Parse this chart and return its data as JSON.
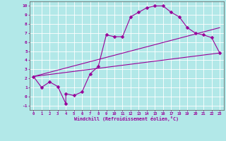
{
  "xlabel": "Windchill (Refroidissement éolien,°C)",
  "xlim": [
    -0.5,
    23.5
  ],
  "ylim": [
    -1.5,
    10.5
  ],
  "xticks": [
    0,
    1,
    2,
    3,
    4,
    5,
    6,
    7,
    8,
    9,
    10,
    11,
    12,
    13,
    14,
    15,
    16,
    17,
    18,
    19,
    20,
    21,
    22,
    23
  ],
  "yticks": [
    -1,
    0,
    1,
    2,
    3,
    4,
    5,
    6,
    7,
    8,
    9,
    10
  ],
  "bg_color": "#b2e8e8",
  "line_color": "#990099",
  "grid_color": "#ffffff",
  "line1_x": [
    0,
    1,
    2,
    3,
    4,
    4,
    5,
    6,
    7,
    8,
    9,
    10,
    11,
    12,
    13,
    14,
    15,
    16,
    17,
    18,
    19,
    20,
    21,
    22,
    23
  ],
  "line1_y": [
    2.2,
    1.0,
    1.6,
    1.1,
    -0.8,
    0.3,
    0.1,
    0.5,
    2.5,
    3.3,
    6.8,
    6.6,
    6.6,
    8.8,
    9.3,
    9.8,
    10.0,
    10.0,
    9.3,
    8.8,
    7.6,
    7.0,
    6.8,
    6.5,
    4.8
  ],
  "line2_x": [
    0,
    23
  ],
  "line2_y": [
    2.2,
    4.8
  ],
  "line3_x": [
    0,
    23
  ],
  "line3_y": [
    2.2,
    7.6
  ],
  "markersize": 2.5,
  "linewidth": 0.8
}
